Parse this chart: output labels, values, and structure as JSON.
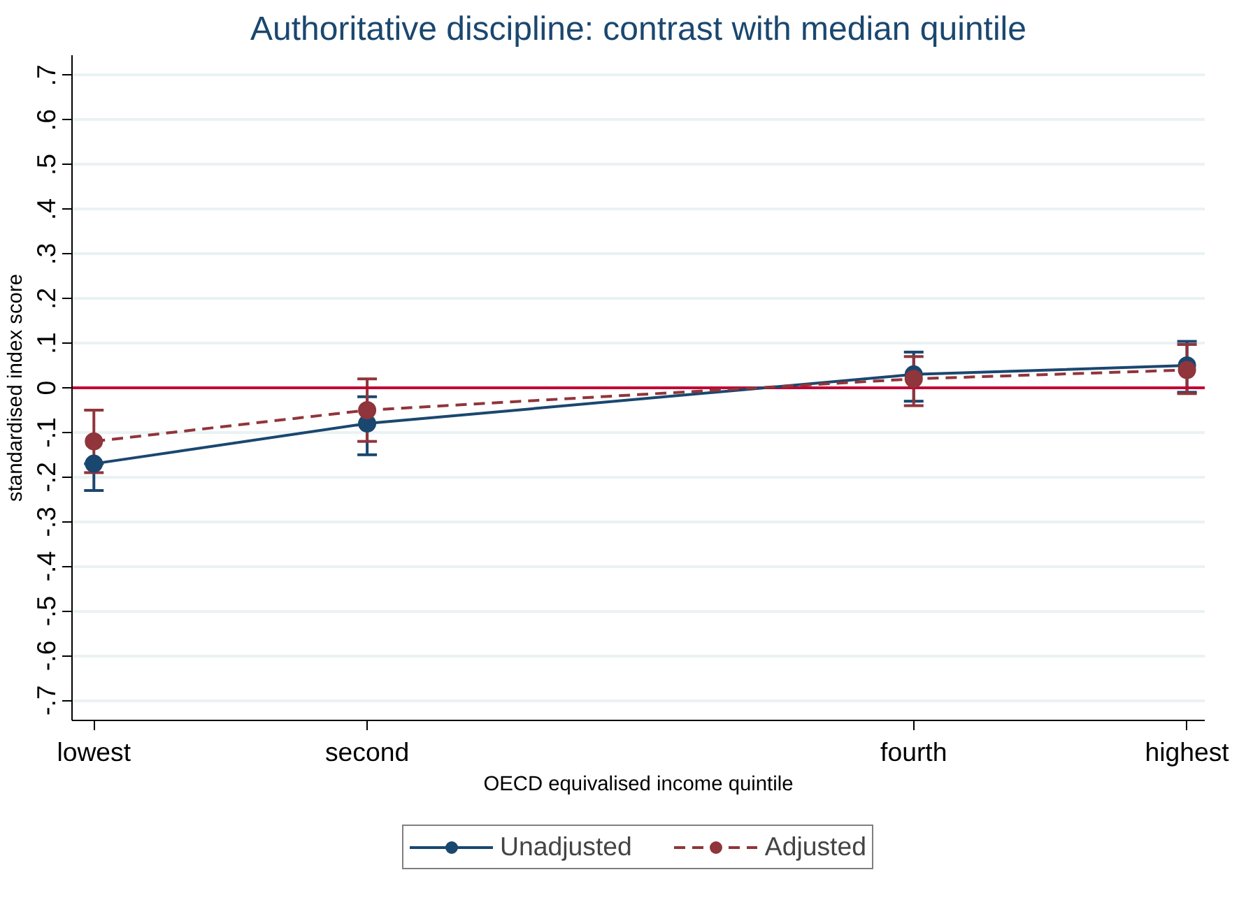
{
  "chart_data": {
    "type": "line",
    "title": "Authoritative discipline: contrast with median quintile",
    "xlabel": "OECD equivalised income quintile",
    "ylabel": "standardised index score",
    "categories": [
      "lowest",
      "second",
      null,
      "fourth",
      "highest"
    ],
    "ylim": [
      -0.745,
      0.745
    ],
    "yticks": [
      {
        "value": -0.7,
        "label": "-.7"
      },
      {
        "value": -0.6,
        "label": "-.6"
      },
      {
        "value": -0.5,
        "label": "-.5"
      },
      {
        "value": -0.4,
        "label": "-.4"
      },
      {
        "value": -0.3,
        "label": "-.3"
      },
      {
        "value": -0.2,
        "label": "-.2"
      },
      {
        "value": -0.1,
        "label": "-.1"
      },
      0,
      {
        "value": 0.1,
        "label": ".1"
      },
      {
        "value": 0.2,
        "label": ".2"
      },
      {
        "value": 0.3,
        "label": ".3"
      },
      {
        "value": 0.4,
        "label": ".4"
      },
      {
        "value": 0.5,
        "label": ".5"
      },
      {
        "value": 0.6,
        "label": ".6"
      },
      {
        "value": 0.7,
        "label": ".7"
      }
    ],
    "grid": "y",
    "legend": "bottom",
    "marker": "circle",
    "ref_lines": [
      {
        "axis": "y",
        "value": 0,
        "color": "#c10534"
      }
    ],
    "series": [
      {
        "name": "Unadjusted",
        "color": "#1a476f",
        "line_style": "solid",
        "values": [
          -0.17,
          -0.08,
          null,
          0.03,
          0.05
        ],
        "errors": [
          [
            -0.23,
            -0.17
          ],
          [
            -0.15,
            -0.02
          ],
          null,
          [
            -0.03,
            0.08
          ],
          [
            -0.01,
            0.104
          ]
        ]
      },
      {
        "name": "Adjusted",
        "color": "#90353b",
        "line_style": "dashed",
        "values": [
          -0.12,
          -0.05,
          null,
          0.02,
          0.04
        ],
        "errors": [
          [
            -0.19,
            -0.05
          ],
          [
            -0.12,
            0.02
          ],
          null,
          [
            -0.04,
            0.07
          ],
          [
            -0.013,
            0.097
          ]
        ]
      }
    ]
  }
}
